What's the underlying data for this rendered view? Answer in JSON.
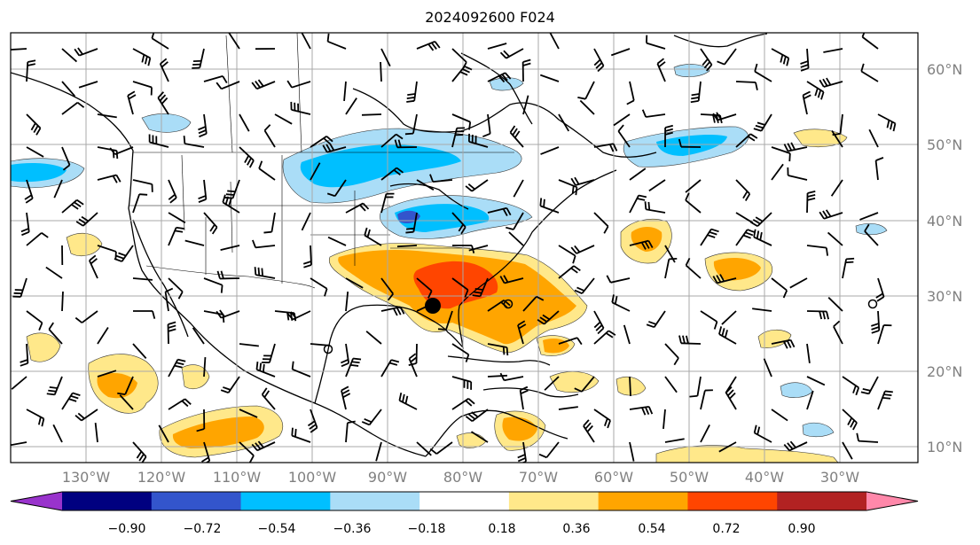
{
  "title": "2024092600 F024",
  "map": {
    "lat_labels": [
      "60°N",
      "50°N",
      "40°N",
      "30°N",
      "20°N",
      "10°N"
    ],
    "lon_labels": [
      "130°W",
      "120°W",
      "110°W",
      "100°W",
      "90°W",
      "80°W",
      "70°W",
      "60°W",
      "50°W",
      "40°W",
      "30°W"
    ],
    "extent": {
      "lon_min": -138,
      "lon_max": -17,
      "lat_min": 8,
      "lat_max": 65
    }
  },
  "colorbar": {
    "tick_labels": [
      "−0.90",
      "−0.72",
      "−0.54",
      "−0.36",
      "−0.18",
      "0.18",
      "0.36",
      "0.54",
      "0.72",
      "0.90"
    ],
    "colors": [
      "#9933cc",
      "#000080",
      "#3355cc",
      "#00bfff",
      "#aaddf7",
      "#ffffff",
      "#ffe88a",
      "#ffa500",
      "#ff4500",
      "#b22222",
      "#ff88aa"
    ],
    "extend": "both"
  },
  "features": {
    "storm_center_marker": "filled-circle",
    "wind_barbs": true
  }
}
